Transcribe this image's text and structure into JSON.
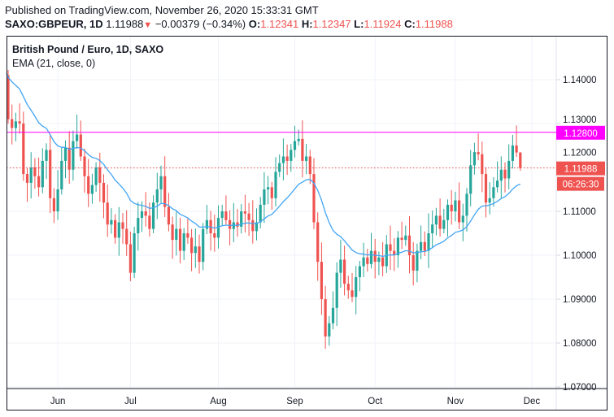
{
  "header": {
    "published": "Published on TradingView.com, November 26, 2020 15:33:31 GMT",
    "symbol": "SAXO:GBPEUR, 1D",
    "last": "1.11988",
    "change": "−0.00379 (−0.34%)",
    "o_label": "O:",
    "o": "1.12341",
    "h_label": "H:",
    "h": "1.12347",
    "l_label": "L:",
    "l": "1.11924",
    "c_label": "C:",
    "c": "1.11988"
  },
  "legend": {
    "title": "British Pound / Euro, 1D, SAXO",
    "indicator": "EMA (21, close, 0)"
  },
  "labels": {
    "hline_price": "1.12800",
    "last_price": "1.11988",
    "countdown": "06:26:30"
  },
  "colors": {
    "up": "#26a69a",
    "down": "#ef5350",
    "ema": "#42a5f5",
    "hline": "#ff00ff"
  },
  "chart_data": {
    "type": "candlestick",
    "title": "British Pound / Euro, 1D, SAXO",
    "ylim": [
      1.07,
      1.148
    ],
    "y_ticks": [
      "1.07000",
      "1.08000",
      "1.09000",
      "1.10000",
      "1.11000",
      "1.12000",
      "1.13000",
      "1.14000"
    ],
    "x_ticks": [
      {
        "label": "Jun",
        "index": 13
      },
      {
        "label": "Jul",
        "index": 32
      },
      {
        "label": "Aug",
        "index": 55
      },
      {
        "label": "Sep",
        "index": 75
      },
      {
        "label": "Oct",
        "index": 96
      },
      {
        "label": "Nov",
        "index": 117
      },
      {
        "label": "Dec",
        "index": 137
      }
    ],
    "first_open": 1.141,
    "closes": [
      1.131,
      1.129,
      1.1305,
      1.13,
      1.1185,
      1.1165,
      1.12,
      1.118,
      1.1155,
      1.1215,
      1.124,
      1.113,
      1.11,
      1.115,
      1.1215,
      1.1245,
      1.1195,
      1.126,
      1.1275,
      1.1225,
      1.118,
      1.114,
      1.116,
      1.12,
      1.1165,
      1.112,
      1.107,
      1.108,
      1.104,
      1.1075,
      1.106,
      1.1025,
      1.096,
      1.105,
      1.1085,
      1.11,
      1.109,
      1.106,
      1.112,
      1.115,
      1.118,
      1.111,
      1.107,
      1.1035,
      1.106,
      1.101,
      1.105,
      1.104,
      1.1005,
      1.102,
      1.0985,
      1.106,
      1.108,
      1.105,
      1.104,
      1.1085,
      1.11,
      1.108,
      1.106,
      1.1075,
      1.1065,
      1.11,
      1.1095,
      1.108,
      1.1055,
      1.1075,
      1.1115,
      1.115,
      1.1155,
      1.113,
      1.119,
      1.121,
      1.1225,
      1.1215,
      1.124,
      1.126,
      1.1265,
      1.1215,
      1.1225,
      1.1185,
      1.1075,
      1.0985,
      1.09,
      1.0815,
      1.0845,
      1.088,
      1.096,
      1.099,
      1.0935,
      1.092,
      1.0905,
      1.095,
      1.0975,
      1.0995,
      1.098,
      1.101,
      1.0985,
      1.0995,
      1.0975,
      1.1025,
      1.101,
      1.1,
      1.104,
      1.1035,
      1.1045,
      1.1,
      1.0965,
      1.101,
      1.103,
      1.101,
      1.105,
      1.107,
      1.109,
      1.106,
      1.108,
      1.1115,
      1.11,
      1.1125,
      1.1075,
      1.109,
      1.114,
      1.1205,
      1.1235,
      1.123,
      1.1185,
      1.112,
      1.113,
      1.1155,
      1.117,
      1.1195,
      1.1175,
      1.1215,
      1.125,
      1.12341,
      1.11988
    ],
    "last_candle": {
      "open": 1.12341,
      "high": 1.12347,
      "low": 1.11924,
      "close": 1.11988
    },
    "ema_period": 21,
    "ema_seed": 1.1415,
    "hline": 1.128,
    "last_price": 1.11988
  }
}
